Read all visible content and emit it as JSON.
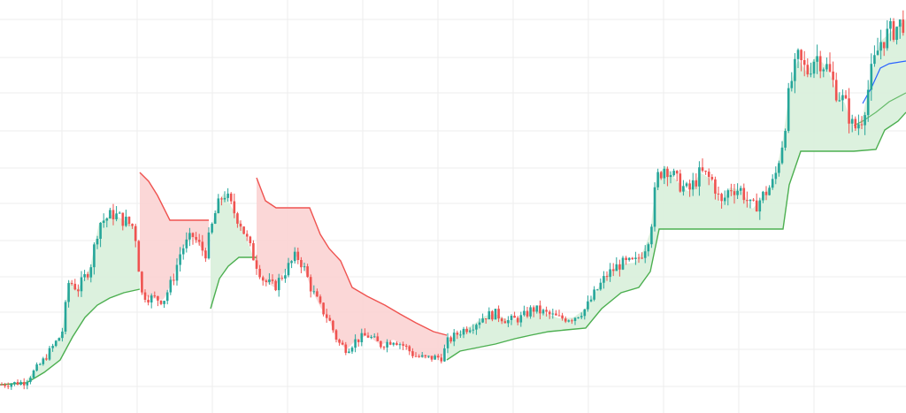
{
  "chart_data": {
    "type": "candlestick",
    "indicator": "supertrend",
    "title": "",
    "xlabel": "",
    "ylabel": "",
    "grid": true,
    "ylim": [
      0,
      467
    ],
    "colors": {
      "up": "#26a69a",
      "down": "#ef5350",
      "trend_up_line": "#4caf50",
      "trend_down_line": "#ef5350",
      "trend_up_fill": "#d8f0da",
      "trend_down_fill": "#fbd3d3",
      "ma_blue": "#2962ff",
      "ma_green": "#66bb6a",
      "grid": "#eeeeee"
    },
    "price_anchors": [
      [
        0,
        32
      ],
      [
        28,
        35
      ],
      [
        48,
        58
      ],
      [
        70,
        90
      ],
      [
        78,
        150
      ],
      [
        88,
        140
      ],
      [
        102,
        165
      ],
      [
        112,
        215
      ],
      [
        128,
        225
      ],
      [
        140,
        218
      ],
      [
        152,
        210
      ],
      [
        160,
        135
      ],
      [
        170,
        130
      ],
      [
        185,
        128
      ],
      [
        195,
        150
      ],
      [
        205,
        185
      ],
      [
        218,
        200
      ],
      [
        232,
        180
      ],
      [
        243,
        225
      ],
      [
        253,
        250
      ],
      [
        262,
        232
      ],
      [
        272,
        215
      ],
      [
        285,
        180
      ],
      [
        298,
        150
      ],
      [
        310,
        142
      ],
      [
        322,
        160
      ],
      [
        335,
        178
      ],
      [
        342,
        168
      ],
      [
        352,
        140
      ],
      [
        362,
        120
      ],
      [
        372,
        105
      ],
      [
        382,
        80
      ],
      [
        392,
        72
      ],
      [
        402,
        82
      ],
      [
        415,
        88
      ],
      [
        430,
        77
      ],
      [
        445,
        83
      ],
      [
        458,
        75
      ],
      [
        468,
        65
      ],
      [
        480,
        62
      ],
      [
        500,
        63
      ],
      [
        505,
        80
      ],
      [
        520,
        92
      ],
      [
        535,
        100
      ],
      [
        548,
        110
      ],
      [
        560,
        112
      ],
      [
        575,
        104
      ],
      [
        590,
        108
      ],
      [
        602,
        118
      ],
      [
        618,
        112
      ],
      [
        632,
        107
      ],
      [
        648,
        108
      ],
      [
        662,
        118
      ],
      [
        672,
        135
      ],
      [
        685,
        155
      ],
      [
        700,
        168
      ],
      [
        718,
        170
      ],
      [
        728,
        185
      ],
      [
        735,
        205
      ],
      [
        742,
        265
      ],
      [
        752,
        280
      ],
      [
        765,
        262
      ],
      [
        778,
        250
      ],
      [
        792,
        272
      ],
      [
        806,
        262
      ],
      [
        815,
        235
      ],
      [
        825,
        255
      ],
      [
        838,
        252
      ],
      [
        850,
        230
      ],
      [
        862,
        245
      ],
      [
        875,
        262
      ],
      [
        885,
        310
      ],
      [
        893,
        370
      ],
      [
        902,
        400
      ],
      [
        912,
        385
      ],
      [
        922,
        405
      ],
      [
        935,
        390
      ],
      [
        945,
        365
      ],
      [
        955,
        350
      ],
      [
        965,
        320
      ],
      [
        975,
        335
      ],
      [
        985,
        385
      ],
      [
        995,
        420
      ],
      [
        1008,
        432
      ],
      [
        1024,
        445
      ]
    ],
    "supertrend": [
      {
        "dir": "up",
        "x0": 0,
        "x1": 158,
        "points": [
          [
            0,
            32
          ],
          [
            30,
            34
          ],
          [
            50,
            46
          ],
          [
            68,
            60
          ],
          [
            82,
            86
          ],
          [
            96,
            108
          ],
          [
            110,
            122
          ],
          [
            124,
            130
          ],
          [
            140,
            136
          ],
          [
            158,
            140
          ]
        ]
      },
      {
        "dir": "down",
        "x0": 158,
        "x1": 236,
        "points": [
          [
            158,
            272
          ],
          [
            168,
            262
          ],
          [
            178,
            246
          ],
          [
            192,
            218
          ],
          [
            208,
            218
          ],
          [
            236,
            218
          ]
        ]
      },
      {
        "dir": "up",
        "x0": 238,
        "x1": 290,
        "points": [
          [
            238,
            118
          ],
          [
            248,
            152
          ],
          [
            258,
            166
          ],
          [
            270,
            176
          ],
          [
            290,
            176
          ]
        ]
      },
      {
        "dir": "down",
        "x0": 290,
        "x1": 505,
        "points": [
          [
            290,
            266
          ],
          [
            300,
            240
          ],
          [
            312,
            232
          ],
          [
            350,
            232
          ],
          [
            362,
            202
          ],
          [
            372,
            186
          ],
          [
            385,
            172
          ],
          [
            398,
            142
          ],
          [
            415,
            132
          ],
          [
            435,
            122
          ],
          [
            452,
            112
          ],
          [
            470,
            102
          ],
          [
            490,
            92
          ],
          [
            505,
            88
          ]
        ]
      },
      {
        "dir": "up",
        "x0": 505,
        "x1": 1024,
        "points": [
          [
            505,
            60
          ],
          [
            520,
            70
          ],
          [
            540,
            74
          ],
          [
            560,
            78
          ],
          [
            582,
            84
          ],
          [
            600,
            88
          ],
          [
            620,
            92
          ],
          [
            640,
            94
          ],
          [
            662,
            96
          ],
          [
            680,
            118
          ],
          [
            702,
            136
          ],
          [
            722,
            142
          ],
          [
            735,
            160
          ],
          [
            745,
            208
          ],
          [
            820,
            208
          ],
          [
            850,
            208
          ],
          [
            885,
            208
          ],
          [
            892,
            258
          ],
          [
            905,
            296
          ],
          [
            930,
            296
          ],
          [
            965,
            296
          ],
          [
            990,
            298
          ],
          [
            1000,
            320
          ],
          [
            1015,
            330
          ],
          [
            1024,
            340
          ]
        ]
      }
    ],
    "moving_averages": [
      {
        "color_key": "ma_blue",
        "points": [
          [
            975,
            350
          ],
          [
            985,
            368
          ],
          [
            995,
            390
          ],
          [
            1005,
            395
          ],
          [
            1024,
            398
          ]
        ]
      },
      {
        "color_key": "ma_green",
        "points": [
          [
            965,
            325
          ],
          [
            975,
            330
          ],
          [
            990,
            340
          ],
          [
            1005,
            352
          ],
          [
            1024,
            362
          ]
        ]
      }
    ]
  }
}
